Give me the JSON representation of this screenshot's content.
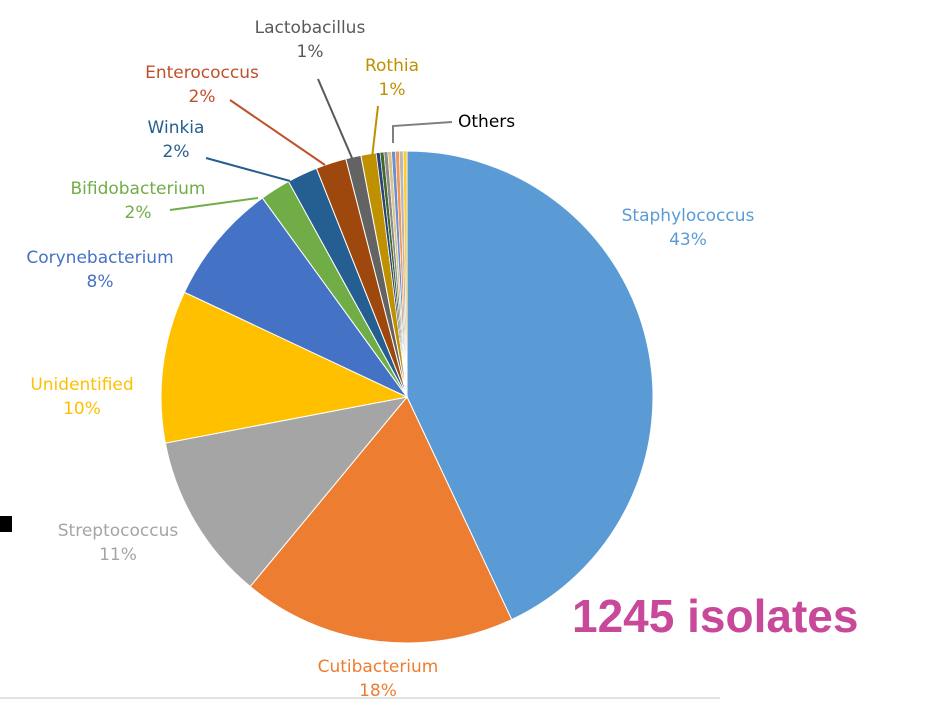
{
  "chart_data": {
    "type": "pie",
    "slices": [
      {
        "name": "Staphylococcus",
        "percent_label": "43%",
        "value": 43,
        "color": "#5b9bd5",
        "label_color": "#5b9bd5"
      },
      {
        "name": "Cutibacterium",
        "percent_label": "18%",
        "value": 18,
        "color": "#ed7d31",
        "label_color": "#ed7d31"
      },
      {
        "name": "Streptococcus",
        "percent_label": "11%",
        "value": 11,
        "color": "#a5a5a5",
        "label_color": "#a5a5a5"
      },
      {
        "name": "Unidentified",
        "percent_label": "10%",
        "value": 10,
        "color": "#ffc000",
        "label_color": "#ffc000"
      },
      {
        "name": "Corynebacterium",
        "percent_label": "8%",
        "value": 8,
        "color": "#4472c4",
        "label_color": "#4472c4"
      },
      {
        "name": "Bifidobacterium",
        "percent_label": "2%",
        "value": 2,
        "color": "#70ad47",
        "label_color": "#70ad47"
      },
      {
        "name": "Winkia",
        "percent_label": "2%",
        "value": 2,
        "color": "#255e91",
        "label_color": "#255e91"
      },
      {
        "name": "Enterococcus",
        "percent_label": "2%",
        "value": 2,
        "color": "#9e480e",
        "label_color": "#c0502a"
      },
      {
        "name": "Lactobacillus",
        "percent_label": "1%",
        "value": 1,
        "color": "#636363",
        "label_color": "#595959"
      },
      {
        "name": "Rothia",
        "percent_label": "1%",
        "value": 1,
        "color": "#bf9000",
        "label_color": "#bf9000"
      },
      {
        "name": "Others",
        "percent_label": "",
        "value": 2,
        "color": "#c8bfa0",
        "label_color": "#000000"
      }
    ],
    "others_sub_colors": [
      "#264478",
      "#43682b",
      "#8a8a8a",
      "#d9c58a",
      "#698ed0",
      "#f1975a",
      "#b7b7b7",
      "#ffcd33"
    ],
    "annotation": "1245 isolates",
    "annotation_color": "#c8489a"
  }
}
